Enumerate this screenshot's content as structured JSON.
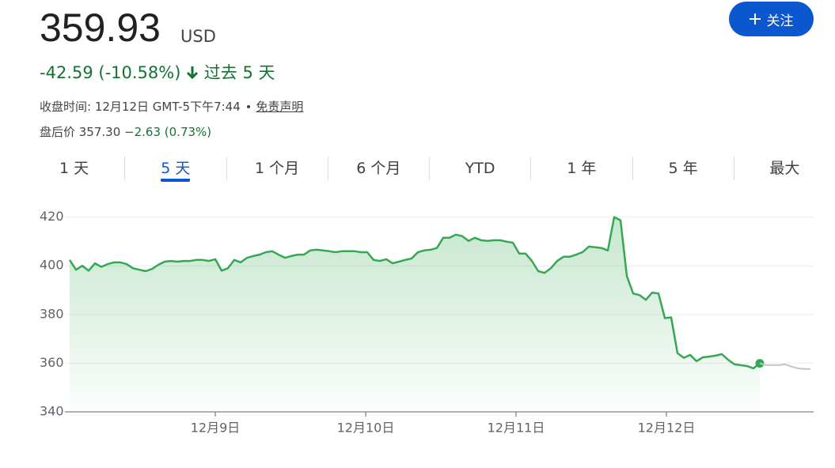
{
  "header": {
    "price": "359.93",
    "currency": "USD",
    "change": "-42.59 (-10.58%)",
    "period": "过去 5 天",
    "close_label": "收盘时间: 12月12日 GMT-5下午7:44",
    "disclaimer": "免责声明",
    "after_hours_label": "盘后价 357.30",
    "after_hours_change": "−2.63 (0.73%)",
    "follow": "关注"
  },
  "tabs": {
    "items": [
      "1 天",
      "5 天",
      "1 个月",
      "6 个月",
      "YTD",
      "1 年",
      "5 年",
      "最大"
    ],
    "active": 1
  },
  "chart_data": {
    "type": "line",
    "grid": true,
    "series": [
      {
        "color": "#34a853",
        "values": [
          402.4,
          398.4,
          400,
          398,
          401,
          399.6,
          400.7,
          401.4,
          401.4,
          400.7,
          399,
          398.4,
          397.8,
          398.7,
          400.4,
          401.7,
          402,
          401.7,
          402,
          402,
          402.4,
          402.4,
          402,
          402.7,
          398,
          399,
          402.4,
          401.4,
          403.3,
          404,
          404.6,
          405.6,
          406,
          404.6,
          403.3,
          404,
          404.6,
          404.6,
          406.3,
          406.6,
          406.3,
          406,
          405.6,
          406,
          406,
          406,
          405.6,
          405.6,
          402.4,
          402,
          402.7,
          401,
          401.7,
          402.4,
          403,
          405.6,
          406.3,
          406.6,
          407.3,
          411.5,
          411.5,
          412.8,
          412.2,
          410.2,
          411.5,
          410.5,
          410.2,
          410.5,
          410.5,
          409.9,
          409.5,
          405,
          405,
          402,
          397.8,
          397.1,
          399,
          402,
          403.7,
          403.7,
          404.6,
          405.6,
          407.9,
          407.6,
          407.3,
          406.3,
          420,
          418.7,
          395.8,
          388.6,
          388,
          386,
          389,
          388.6,
          378.5,
          378.8,
          364.1,
          362.2,
          363.4,
          360.8,
          362.4,
          362.7,
          363.1,
          363.7,
          361.4,
          359.5,
          359.2,
          358.8,
          357.9,
          359.93,
          null,
          null,
          null,
          null,
          null,
          null,
          null,
          null
        ]
      },
      {
        "color": "#c4c4c4",
        "values": [
          null,
          null,
          null,
          null,
          null,
          null,
          null,
          null,
          null,
          null,
          null,
          null,
          null,
          null,
          null,
          null,
          null,
          null,
          null,
          null,
          null,
          null,
          null,
          null,
          null,
          null,
          null,
          null,
          null,
          null,
          null,
          null,
          null,
          null,
          null,
          null,
          null,
          null,
          null,
          null,
          null,
          null,
          null,
          null,
          null,
          null,
          null,
          null,
          null,
          null,
          null,
          null,
          null,
          null,
          null,
          null,
          null,
          null,
          null,
          null,
          null,
          null,
          null,
          null,
          null,
          null,
          null,
          null,
          null,
          null,
          null,
          null,
          null,
          null,
          null,
          null,
          null,
          null,
          null,
          null,
          null,
          null,
          null,
          null,
          null,
          null,
          null,
          null,
          null,
          null,
          null,
          null,
          null,
          null,
          null,
          null,
          null,
          null,
          null,
          null,
          null,
          null,
          null,
          null,
          null,
          null,
          null,
          null,
          null,
          359.93,
          359.2,
          359.2,
          359.2,
          359.5,
          358.6,
          357.9,
          357.6,
          357.6
        ]
      }
    ],
    "xlim": [
      0,
      117.5
    ],
    "xticks": [
      {
        "value": 23,
        "label": "12月9日"
      },
      {
        "value": 46.75,
        "label": "12月10日"
      },
      {
        "value": 70.5,
        "label": "12月11日"
      },
      {
        "value": 94.25,
        "label": "12月12日"
      }
    ],
    "ylim": [
      340,
      428
    ],
    "yticks": [
      340,
      360,
      380,
      400,
      420
    ]
  }
}
